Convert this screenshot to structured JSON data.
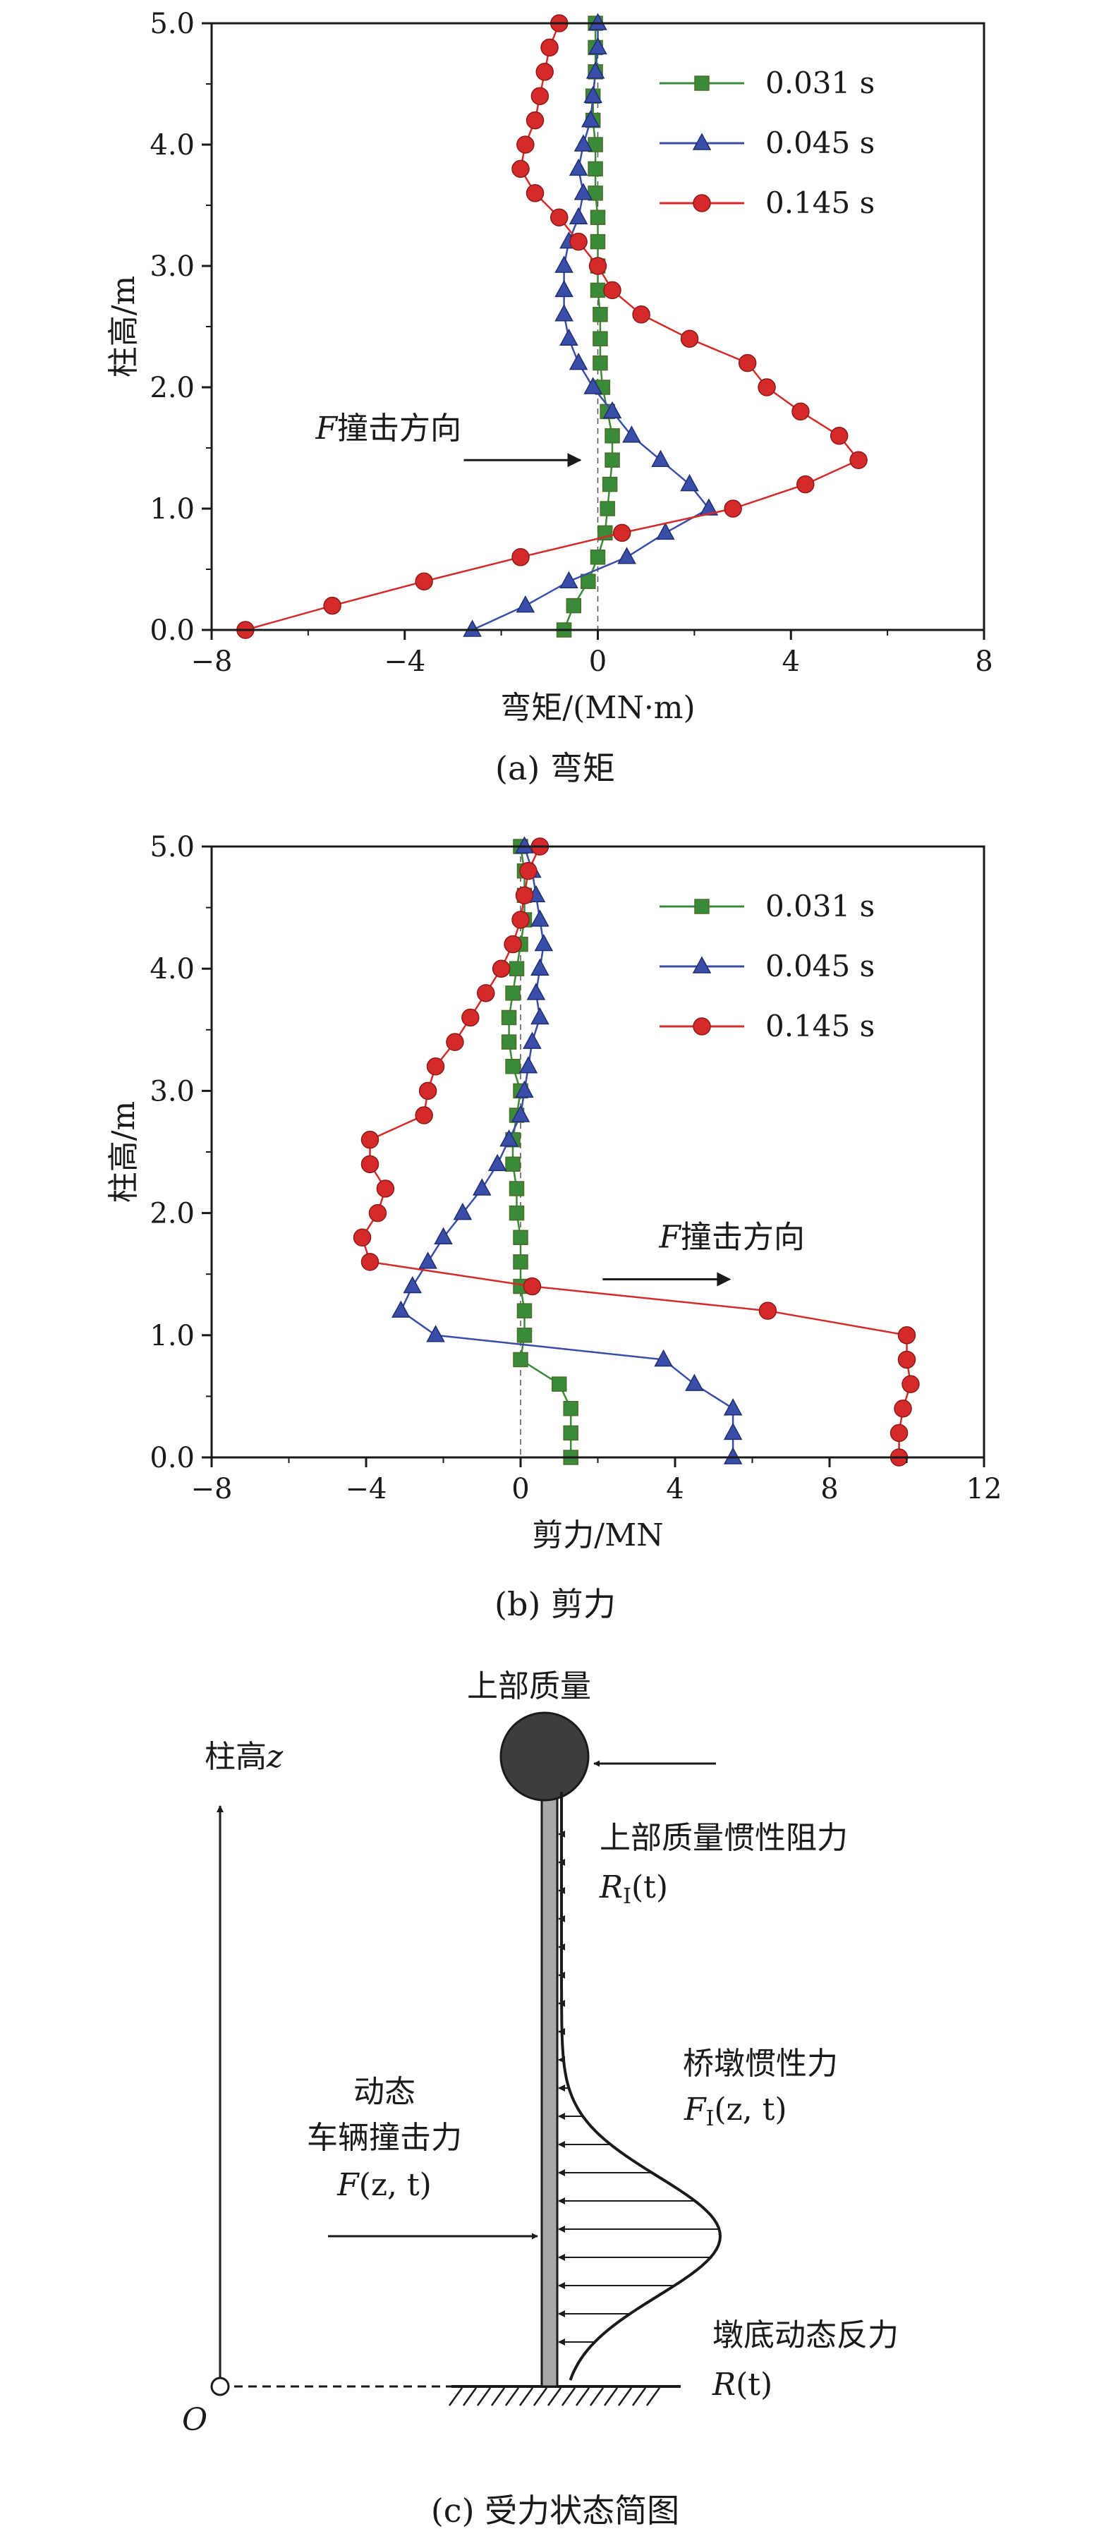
{
  "chart_data": [
    {
      "type": "line",
      "caption": "(a) 弯矩",
      "xlabel": "弯矩/(MN·m)",
      "ylabel": "柱高/m",
      "xlim": [
        -8,
        8
      ],
      "ylim": [
        0,
        5
      ],
      "xticks": [
        -8,
        -4,
        0,
        4,
        8
      ],
      "xtick_labels": [
        "−8",
        "−4",
        "0",
        "4",
        "8"
      ],
      "yticks": [
        0,
        1,
        2,
        3,
        4,
        5
      ],
      "ytick_labels": [
        "0.0",
        "1.0",
        "2.0",
        "3.0",
        "4.0",
        "5.0"
      ],
      "legend_position": "top-right",
      "annotation": {
        "italic": "F",
        "text": "撞击方向",
        "x": 0,
        "y": 1.4
      },
      "series": [
        {
          "name": "0.031 s",
          "color": "#3a8a3a",
          "marker": "square",
          "points": [
            [
              -0.7,
              0
            ],
            [
              -0.5,
              0.2
            ],
            [
              -0.2,
              0.4
            ],
            [
              0,
              0.6
            ],
            [
              0.15,
              0.8
            ],
            [
              0.2,
              1.0
            ],
            [
              0.25,
              1.2
            ],
            [
              0.3,
              1.4
            ],
            [
              0.3,
              1.6
            ],
            [
              0.2,
              1.8
            ],
            [
              0.1,
              2.0
            ],
            [
              0.05,
              2.2
            ],
            [
              0.05,
              2.4
            ],
            [
              0.05,
              2.6
            ],
            [
              0,
              2.8
            ],
            [
              0,
              3.0
            ],
            [
              0,
              3.2
            ],
            [
              0,
              3.4
            ],
            [
              -0.05,
              3.6
            ],
            [
              -0.05,
              3.8
            ],
            [
              -0.05,
              4.0
            ],
            [
              -0.1,
              4.2
            ],
            [
              -0.1,
              4.4
            ],
            [
              -0.05,
              4.6
            ],
            [
              -0.05,
              4.8
            ],
            [
              -0.05,
              5.0
            ]
          ]
        },
        {
          "name": "0.045 s",
          "color": "#3a4da8",
          "marker": "triangle",
          "points": [
            [
              -2.6,
              0
            ],
            [
              -1.5,
              0.2
            ],
            [
              -0.6,
              0.4
            ],
            [
              0.6,
              0.6
            ],
            [
              1.4,
              0.8
            ],
            [
              2.3,
              1.0
            ],
            [
              1.9,
              1.2
            ],
            [
              1.3,
              1.4
            ],
            [
              0.7,
              1.6
            ],
            [
              0.3,
              1.8
            ],
            [
              -0.1,
              2.0
            ],
            [
              -0.4,
              2.2
            ],
            [
              -0.6,
              2.4
            ],
            [
              -0.7,
              2.6
            ],
            [
              -0.7,
              2.8
            ],
            [
              -0.7,
              3.0
            ],
            [
              -0.6,
              3.2
            ],
            [
              -0.4,
              3.4
            ],
            [
              -0.3,
              3.6
            ],
            [
              -0.4,
              3.8
            ],
            [
              -0.3,
              4.0
            ],
            [
              -0.15,
              4.2
            ],
            [
              -0.1,
              4.4
            ],
            [
              -0.05,
              4.6
            ],
            [
              0,
              4.8
            ],
            [
              0,
              5.0
            ]
          ]
        },
        {
          "name": "0.145 s",
          "color": "#d42a2a",
          "marker": "circle",
          "points": [
            [
              -7.3,
              0
            ],
            [
              -5.5,
              0.2
            ],
            [
              -3.6,
              0.4
            ],
            [
              -1.6,
              0.6
            ],
            [
              0.5,
              0.8
            ],
            [
              2.8,
              1.0
            ],
            [
              4.3,
              1.2
            ],
            [
              5.4,
              1.4
            ],
            [
              5.0,
              1.6
            ],
            [
              4.2,
              1.8
            ],
            [
              3.5,
              2.0
            ],
            [
              3.1,
              2.2
            ],
            [
              1.9,
              2.4
            ],
            [
              0.9,
              2.6
            ],
            [
              0.3,
              2.8
            ],
            [
              0,
              3.0
            ],
            [
              -0.4,
              3.2
            ],
            [
              -0.8,
              3.4
            ],
            [
              -1.3,
              3.6
            ],
            [
              -1.6,
              3.8
            ],
            [
              -1.5,
              4.0
            ],
            [
              -1.3,
              4.2
            ],
            [
              -1.2,
              4.4
            ],
            [
              -1.1,
              4.6
            ],
            [
              -1.0,
              4.8
            ],
            [
              -0.8,
              5.0
            ]
          ]
        }
      ]
    },
    {
      "type": "line",
      "caption": "(b) 剪力",
      "xlabel": "剪力/MN",
      "ylabel": "柱高/m",
      "xlim": [
        -8,
        12
      ],
      "ylim": [
        0,
        5
      ],
      "xticks": [
        -8,
        -4,
        0,
        4,
        8,
        12
      ],
      "xtick_labels": [
        "−8",
        "−4",
        "0",
        "4",
        "8",
        "12"
      ],
      "yticks": [
        0,
        1,
        2,
        3,
        4,
        5
      ],
      "ytick_labels": [
        "0.0",
        "1.0",
        "2.0",
        "3.0",
        "4.0",
        "5.0"
      ],
      "legend_position": "top-right",
      "annotation": {
        "italic": "F",
        "text": "撞击方向",
        "x": 4.5,
        "y": 1.4
      },
      "series": [
        {
          "name": "0.031 s",
          "color": "#3a8a3a",
          "marker": "square",
          "points": [
            [
              1.3,
              0
            ],
            [
              1.3,
              0.2
            ],
            [
              1.3,
              0.4
            ],
            [
              1.0,
              0.6
            ],
            [
              0,
              0.8
            ],
            [
              0.1,
              1.0
            ],
            [
              0.1,
              1.2
            ],
            [
              0,
              1.4
            ],
            [
              0,
              1.6
            ],
            [
              0,
              1.8
            ],
            [
              -0.1,
              2.0
            ],
            [
              -0.1,
              2.2
            ],
            [
              -0.2,
              2.4
            ],
            [
              -0.2,
              2.6
            ],
            [
              -0.1,
              2.8
            ],
            [
              0,
              3.0
            ],
            [
              -0.2,
              3.2
            ],
            [
              -0.3,
              3.4
            ],
            [
              -0.3,
              3.6
            ],
            [
              -0.2,
              3.8
            ],
            [
              -0.1,
              4.0
            ],
            [
              0,
              4.2
            ],
            [
              0.1,
              4.4
            ],
            [
              0.1,
              4.6
            ],
            [
              0.1,
              4.8
            ],
            [
              0,
              5.0
            ]
          ]
        },
        {
          "name": "0.045 s",
          "color": "#3a4da8",
          "marker": "triangle",
          "points": [
            [
              5.5,
              0
            ],
            [
              5.5,
              0.2
            ],
            [
              5.5,
              0.4
            ],
            [
              4.5,
              0.6
            ],
            [
              3.7,
              0.8
            ],
            [
              -2.2,
              1.0
            ],
            [
              -3.1,
              1.2
            ],
            [
              -2.8,
              1.4
            ],
            [
              -2.4,
              1.6
            ],
            [
              -2.0,
              1.8
            ],
            [
              -1.5,
              2.0
            ],
            [
              -1.0,
              2.2
            ],
            [
              -0.6,
              2.4
            ],
            [
              -0.3,
              2.6
            ],
            [
              0,
              2.8
            ],
            [
              0.1,
              3.0
            ],
            [
              0.2,
              3.2
            ],
            [
              0.3,
              3.4
            ],
            [
              0.5,
              3.6
            ],
            [
              0.4,
              3.8
            ],
            [
              0.5,
              4.0
            ],
            [
              0.6,
              4.2
            ],
            [
              0.5,
              4.4
            ],
            [
              0.4,
              4.6
            ],
            [
              0.3,
              4.8
            ],
            [
              0.1,
              5.0
            ]
          ]
        },
        {
          "name": "0.145 s",
          "color": "#d42a2a",
          "marker": "circle",
          "points": [
            [
              9.8,
              0
            ],
            [
              9.8,
              0.2
            ],
            [
              9.9,
              0.4
            ],
            [
              10.1,
              0.6
            ],
            [
              10.0,
              0.8
            ],
            [
              10.0,
              1.0
            ],
            [
              6.4,
              1.2
            ],
            [
              0.3,
              1.4
            ],
            [
              -3.9,
              1.6
            ],
            [
              -4.1,
              1.8
            ],
            [
              -3.7,
              2.0
            ],
            [
              -3.5,
              2.2
            ],
            [
              -3.9,
              2.4
            ],
            [
              -3.9,
              2.6
            ],
            [
              -2.5,
              2.8
            ],
            [
              -2.4,
              3.0
            ],
            [
              -2.2,
              3.2
            ],
            [
              -1.7,
              3.4
            ],
            [
              -1.3,
              3.6
            ],
            [
              -0.9,
              3.8
            ],
            [
              -0.5,
              4.0
            ],
            [
              -0.2,
              4.2
            ],
            [
              0,
              4.4
            ],
            [
              0.1,
              4.6
            ],
            [
              0.2,
              4.8
            ],
            [
              0.5,
              5.0
            ]
          ]
        }
      ]
    }
  ],
  "diagram": {
    "caption": "(c) 受力状态简图",
    "top_mass_label": "上部质量",
    "axis_label": "柱高",
    "axis_var": "z",
    "origin_label": "O",
    "inertia_resistance_label": "上部质量惯性阻力",
    "inertia_resistance_sym": "R",
    "inertia_resistance_sub": "I",
    "inertia_resistance_args": "(t)",
    "pier_inertia_label": "桥墩惯性力",
    "pier_inertia_sym": "F",
    "pier_inertia_sub": "I",
    "pier_inertia_args": "(z, t)",
    "impact_label_1": "动态",
    "impact_label_2": "车辆撞击力",
    "impact_sym": "F",
    "impact_args": "(z, t)",
    "base_reaction_label": "墩底动态反力",
    "base_reaction_sym": "R",
    "base_reaction_args": "(t)"
  }
}
